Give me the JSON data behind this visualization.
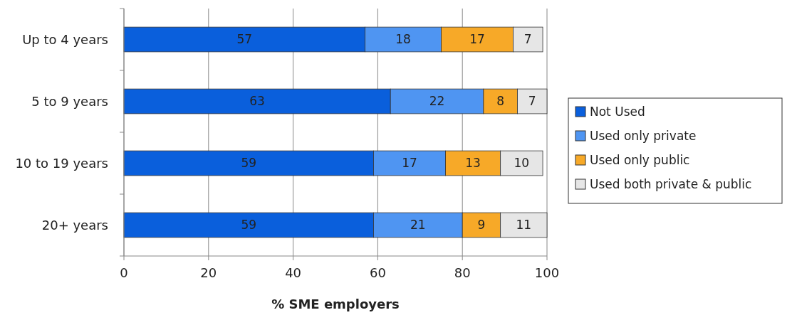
{
  "chart_data": {
    "type": "bar",
    "orientation": "horizontal",
    "stacked": true,
    "categories": [
      "Up to 4 years",
      "5 to 9 years",
      "10 to 19 years",
      "20+ years"
    ],
    "series": [
      {
        "name": "Not Used",
        "color": "#0a5fdc",
        "values": [
          57,
          63,
          59,
          59
        ]
      },
      {
        "name": "Used only private",
        "color": "#4f95f2",
        "values": [
          18,
          22,
          17,
          21
        ]
      },
      {
        "name": "Used only public",
        "color": "#f7a928",
        "values": [
          17,
          8,
          13,
          9
        ]
      },
      {
        "name": "Used both private & public",
        "color": "#e6e6e6",
        "values": [
          7,
          7,
          10,
          11
        ]
      }
    ],
    "xlim": [
      0,
      100
    ],
    "xticks": [
      0,
      20,
      40,
      60,
      80,
      100
    ],
    "xlabel": "% SME employers",
    "grid": "x",
    "legend": "right",
    "data_labels": true
  }
}
